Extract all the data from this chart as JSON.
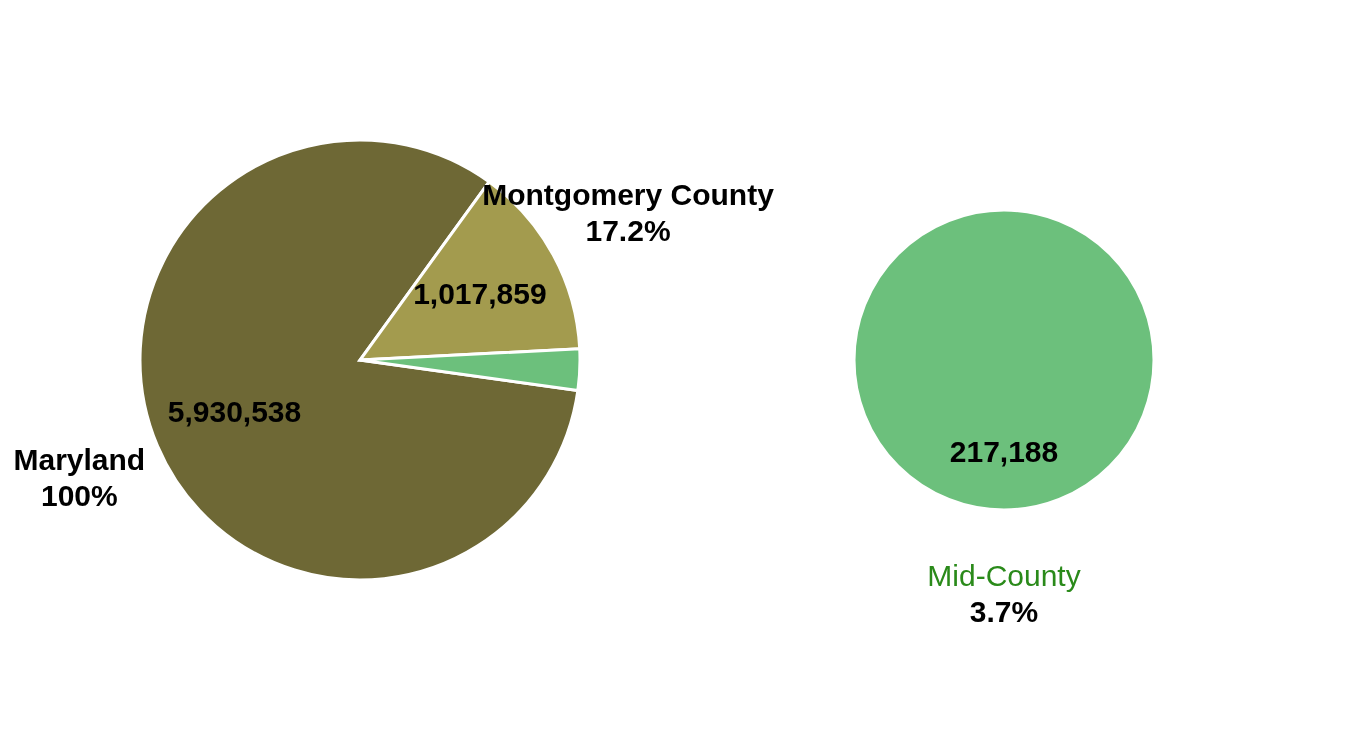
{
  "chart_data": [
    {
      "type": "pie",
      "categories": [
        "Maryland",
        "Montgomery County",
        null
      ],
      "values": [
        5930538,
        1017859,
        217188
      ],
      "colors": [
        "#6e6835",
        "#a39b4e",
        "#6cc07c"
      ],
      "value_labels": [
        "5,930,538",
        "1,017,859",
        null
      ],
      "annotations": [
        "100%",
        "17.2%",
        null
      ]
    },
    {
      "type": "pie",
      "categories": [
        "Mid-County"
      ],
      "values": [
        217188
      ],
      "colors": [
        "#6cc07c"
      ],
      "value_labels": [
        "217,188"
      ],
      "annotations": [
        "3.7%"
      ]
    }
  ]
}
